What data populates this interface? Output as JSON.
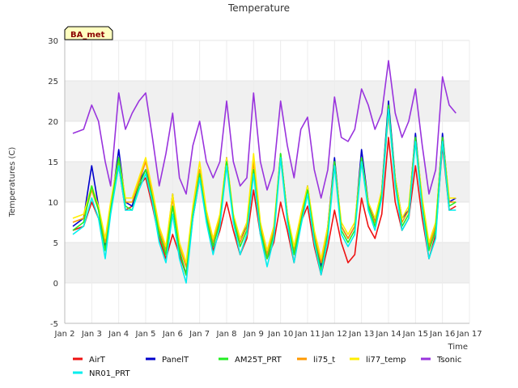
{
  "chart_data": {
    "type": "line",
    "title": "Temperature",
    "xlabel": "Time",
    "ylabel": "Temperatures (C)",
    "site_tag": "BA_met",
    "xlim": [
      2,
      17
    ],
    "ylim": [
      -5,
      30
    ],
    "x_ticks": [
      2,
      3,
      4,
      5,
      6,
      7,
      8,
      9,
      10,
      11,
      12,
      13,
      14,
      15,
      16,
      17
    ],
    "x_tick_labels": [
      "Jan 2",
      "Jan 3",
      "Jan 4",
      "Jan 5",
      "Jan 6",
      "Jan 7",
      "Jan 8",
      "Jan 9",
      "Jan 10",
      "Jan 11",
      "Jan 12",
      "Jan 13",
      "Jan 14",
      "Jan 15",
      "Jan 16",
      "Jan 17"
    ],
    "y_ticks": [
      -5,
      0,
      5,
      10,
      15,
      20,
      25,
      30
    ],
    "y_tick_labels": [
      "-5",
      "0",
      "5",
      "10",
      "15",
      "20",
      "25",
      "30"
    ],
    "band_color": "#f0f0f0",
    "legend_position": "bottom",
    "x": [
      2.3,
      2.7,
      3.0,
      3.25,
      3.5,
      3.7,
      4.0,
      4.25,
      4.5,
      4.75,
      5.0,
      5.25,
      5.5,
      5.75,
      6.0,
      6.25,
      6.5,
      6.75,
      7.0,
      7.25,
      7.5,
      7.75,
      8.0,
      8.25,
      8.5,
      8.75,
      9.0,
      9.25,
      9.5,
      9.75,
      10.0,
      10.25,
      10.5,
      10.75,
      11.0,
      11.25,
      11.5,
      11.75,
      12.0,
      12.25,
      12.5,
      12.75,
      13.0,
      13.25,
      13.5,
      13.75,
      14.0,
      14.25,
      14.5,
      14.75,
      15.0,
      15.25,
      15.5,
      15.75,
      16.0,
      16.25,
      16.5
    ],
    "series": [
      {
        "name": "AirT",
        "color": "#ee1111",
        "values": [
          6.5,
          7.0,
          10.0,
          8.0,
          4.5,
          9.0,
          14.5,
          9.0,
          9.5,
          12.0,
          13.0,
          9.5,
          5.5,
          3.0,
          6.0,
          3.5,
          1.0,
          8.0,
          13.0,
          8.0,
          4.0,
          6.5,
          10.0,
          6.5,
          3.5,
          5.5,
          11.5,
          6.0,
          3.0,
          5.0,
          10.0,
          6.5,
          2.5,
          7.5,
          9.5,
          4.5,
          1.0,
          4.5,
          9.0,
          5.0,
          2.5,
          3.5,
          10.5,
          7.0,
          5.5,
          8.5,
          18.0,
          10.0,
          6.5,
          8.0,
          14.5,
          8.0,
          3.0,
          6.0,
          17.0,
          9.0,
          9.5
        ]
      },
      {
        "name": "PanelT",
        "color": "#0000cc",
        "values": [
          7.0,
          8.0,
          14.5,
          9.5,
          4.5,
          9.0,
          16.5,
          10.0,
          9.5,
          12.5,
          14.0,
          11.0,
          6.0,
          4.0,
          11.0,
          4.0,
          1.0,
          9.0,
          14.0,
          8.5,
          4.5,
          8.0,
          15.5,
          8.0,
          5.5,
          7.0,
          14.0,
          7.0,
          3.5,
          6.5,
          16.0,
          8.5,
          4.0,
          8.0,
          12.0,
          6.0,
          2.0,
          7.0,
          15.5,
          7.0,
          5.5,
          7.0,
          16.5,
          10.0,
          7.5,
          11.5,
          22.5,
          13.0,
          8.0,
          9.0,
          18.5,
          10.0,
          4.5,
          7.0,
          18.5,
          10.0,
          10.5
        ]
      },
      {
        "name": "AM25T_PRT",
        "color": "#22ee22",
        "values": [
          6.5,
          7.5,
          12.0,
          9.0,
          4.0,
          9.0,
          15.5,
          9.5,
          9.0,
          12.0,
          14.0,
          10.5,
          6.0,
          3.5,
          9.5,
          4.0,
          1.0,
          8.5,
          13.5,
          8.0,
          4.5,
          7.5,
          15.0,
          8.0,
          4.5,
          6.5,
          14.0,
          6.5,
          3.0,
          6.0,
          16.0,
          8.0,
          3.5,
          7.5,
          11.5,
          5.5,
          1.5,
          6.0,
          15.0,
          6.5,
          5.0,
          6.5,
          15.5,
          9.5,
          7.0,
          11.0,
          22.0,
          12.5,
          7.0,
          8.5,
          18.0,
          9.5,
          4.0,
          6.5,
          18.0,
          9.5,
          10.0
        ]
      },
      {
        "name": "li75_t",
        "color": "#ff9900",
        "values": [
          7.5,
          8.0,
          11.5,
          9.0,
          5.0,
          9.5,
          15.0,
          10.0,
          10.0,
          12.5,
          15.0,
          11.0,
          6.5,
          4.0,
          10.5,
          4.5,
          2.0,
          9.0,
          14.0,
          8.5,
          5.0,
          8.0,
          15.0,
          8.0,
          5.0,
          7.0,
          15.0,
          7.0,
          3.5,
          6.5,
          15.5,
          8.0,
          4.0,
          8.0,
          11.5,
          6.0,
          2.5,
          6.5,
          14.5,
          7.0,
          5.5,
          7.0,
          15.0,
          9.5,
          7.5,
          11.0,
          21.0,
          12.5,
          7.5,
          9.0,
          17.5,
          10.0,
          4.5,
          7.0,
          17.5,
          10.0,
          10.0
        ]
      },
      {
        "name": "li77_temp",
        "color": "#ffee00",
        "values": [
          8.0,
          8.5,
          12.0,
          9.5,
          5.5,
          10.0,
          15.5,
          10.5,
          10.5,
          13.0,
          15.5,
          11.5,
          7.0,
          4.5,
          11.0,
          5.0,
          2.5,
          9.5,
          15.0,
          9.0,
          5.5,
          8.5,
          15.5,
          8.5,
          5.5,
          7.5,
          16.0,
          7.5,
          4.0,
          7.0,
          16.0,
          8.5,
          4.5,
          8.5,
          12.0,
          6.5,
          3.0,
          7.0,
          15.0,
          7.5,
          6.0,
          7.5,
          15.5,
          10.0,
          8.0,
          11.5,
          21.5,
          13.0,
          8.0,
          9.5,
          18.0,
          10.5,
          5.0,
          7.5,
          18.0,
          10.5,
          10.5
        ]
      },
      {
        "name": "Tsonic",
        "color": "#9933dd",
        "values": [
          18.5,
          19.0,
          22.0,
          20.0,
          15.0,
          12.0,
          23.5,
          19.0,
          21.0,
          22.5,
          23.5,
          18.0,
          12.0,
          16.0,
          21.0,
          13.0,
          11.0,
          17.0,
          20.0,
          15.0,
          13.0,
          15.0,
          22.5,
          15.0,
          12.0,
          13.0,
          23.5,
          15.0,
          11.5,
          14.0,
          22.5,
          17.0,
          13.0,
          19.0,
          20.5,
          14.0,
          10.5,
          14.0,
          23.0,
          18.0,
          17.5,
          19.0,
          24.0,
          22.0,
          19.0,
          21.0,
          27.5,
          21.0,
          18.0,
          20.0,
          24.0,
          17.0,
          11.0,
          14.0,
          25.5,
          22.0,
          21.0
        ]
      },
      {
        "name": "NR01_PRT",
        "color": "#00eeee",
        "values": [
          6.0,
          7.0,
          10.5,
          8.0,
          3.0,
          8.5,
          14.5,
          9.0,
          9.0,
          11.5,
          13.5,
          10.0,
          5.0,
          2.5,
          8.5,
          3.0,
          0.0,
          8.0,
          13.0,
          7.5,
          3.5,
          7.0,
          14.5,
          7.5,
          3.5,
          6.0,
          13.5,
          6.0,
          2.0,
          5.5,
          15.5,
          7.5,
          2.5,
          7.0,
          11.0,
          5.0,
          1.0,
          5.5,
          14.5,
          6.0,
          4.5,
          6.0,
          15.0,
          9.0,
          6.5,
          10.5,
          21.5,
          12.0,
          6.5,
          8.0,
          17.5,
          9.0,
          3.0,
          5.5,
          17.5,
          9.0,
          9.0
        ]
      }
    ],
    "legend": [
      "AirT",
      "PanelT",
      "AM25T_PRT",
      "li75_t",
      "li77_temp",
      "Tsonic",
      "NR01_PRT"
    ]
  }
}
